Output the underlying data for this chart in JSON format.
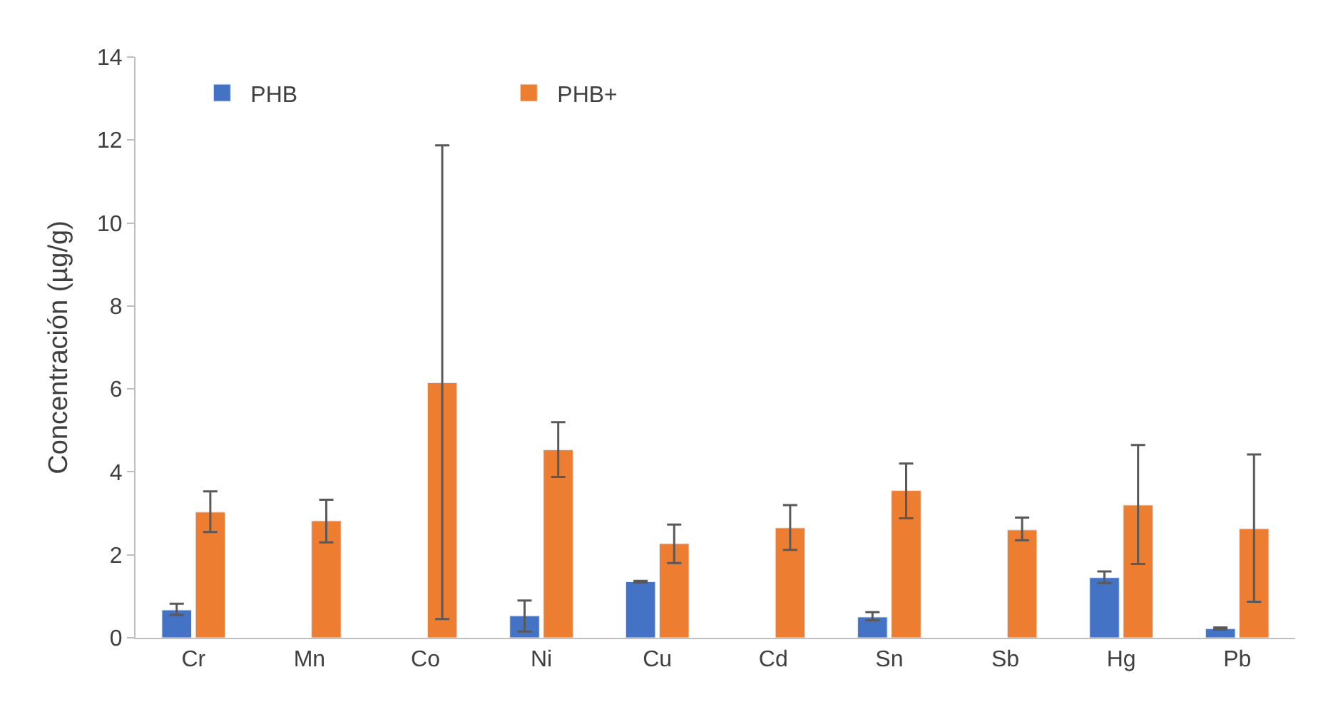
{
  "chart_data": {
    "type": "bar",
    "ylabel": "Concentración (µg/g)",
    "categories": [
      "Cr",
      "Mn",
      "Co",
      "Ni",
      "Cu",
      "Cd",
      "Sn",
      "Sb",
      "Hg",
      "Pb"
    ],
    "series": [
      {
        "name": "PHB",
        "color": "#4472c4",
        "values": [
          0.67,
          null,
          null,
          0.53,
          1.35,
          null,
          0.5,
          null,
          1.45,
          0.22
        ],
        "errors": [
          [
            0.55,
            0.82
          ],
          null,
          null,
          [
            0.15,
            0.9
          ],
          [
            1.33,
            1.37
          ],
          null,
          [
            0.42,
            0.62
          ],
          null,
          [
            1.32,
            1.6
          ],
          [
            0.2,
            0.25
          ]
        ]
      },
      {
        "name": "PHB+",
        "color": "#ed7d31",
        "values": [
          3.03,
          2.82,
          6.15,
          4.53,
          2.27,
          2.65,
          3.55,
          2.6,
          3.2,
          2.63
        ],
        "errors": [
          [
            2.55,
            3.53
          ],
          [
            2.3,
            3.33
          ],
          [
            0.45,
            11.87
          ],
          [
            3.88,
            5.2
          ],
          [
            1.8,
            2.73
          ],
          [
            2.12,
            3.2
          ],
          [
            2.88,
            4.2
          ],
          [
            2.35,
            2.9
          ],
          [
            1.78,
            4.65
          ],
          [
            0.87,
            4.42
          ]
        ]
      }
    ],
    "ylim": [
      0,
      14
    ],
    "yticks": [
      0,
      2,
      4,
      6,
      8,
      10,
      12,
      14
    ],
    "grid": false,
    "legend": "top left"
  }
}
